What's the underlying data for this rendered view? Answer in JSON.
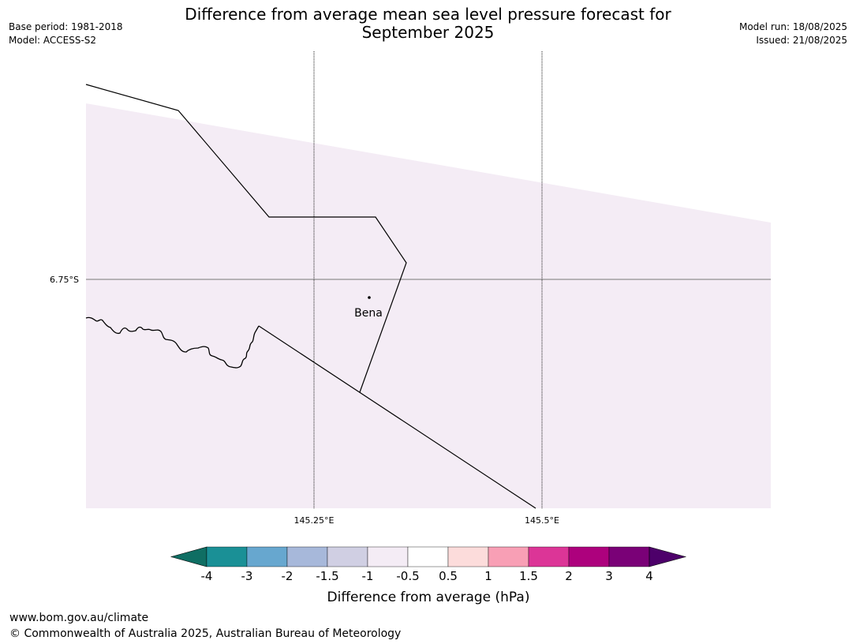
{
  "header": {
    "title_line1": "Difference from average mean sea level pressure forecast for",
    "title_line2": "September 2025",
    "base_period": "Base period: 1981-2018",
    "model": "Model: ACCESS-S2",
    "model_run": "Model run: 18/08/2025",
    "issued": "Issued: 21/08/2025"
  },
  "map": {
    "lat_label": "6.75°S",
    "lon_labels": [
      "145.25°E",
      "145.5°E"
    ],
    "place_name": "Bena",
    "field_color": "#f4ecf5"
  },
  "colorbar": {
    "title": "Difference from average (hPa)",
    "ticks": [
      "-4",
      "-3",
      "-2",
      "-1.5",
      "-1",
      "-0.5",
      "0.5",
      "1",
      "1.5",
      "2",
      "3",
      "4"
    ],
    "colors": [
      "#0f6e63",
      "#1a9096",
      "#67a7cf",
      "#a7b8da",
      "#d0cfe3",
      "#f4ecf5",
      "#ffffff",
      "#fcdcdb",
      "#f89fb5",
      "#dc3597",
      "#ad017d",
      "#7a0177",
      "#4d006a"
    ]
  },
  "footer": {
    "url": "www.bom.gov.au/climate",
    "copyright": "© Commonwealth of Australia 2025, Australian Bureau of Meteorology"
  }
}
